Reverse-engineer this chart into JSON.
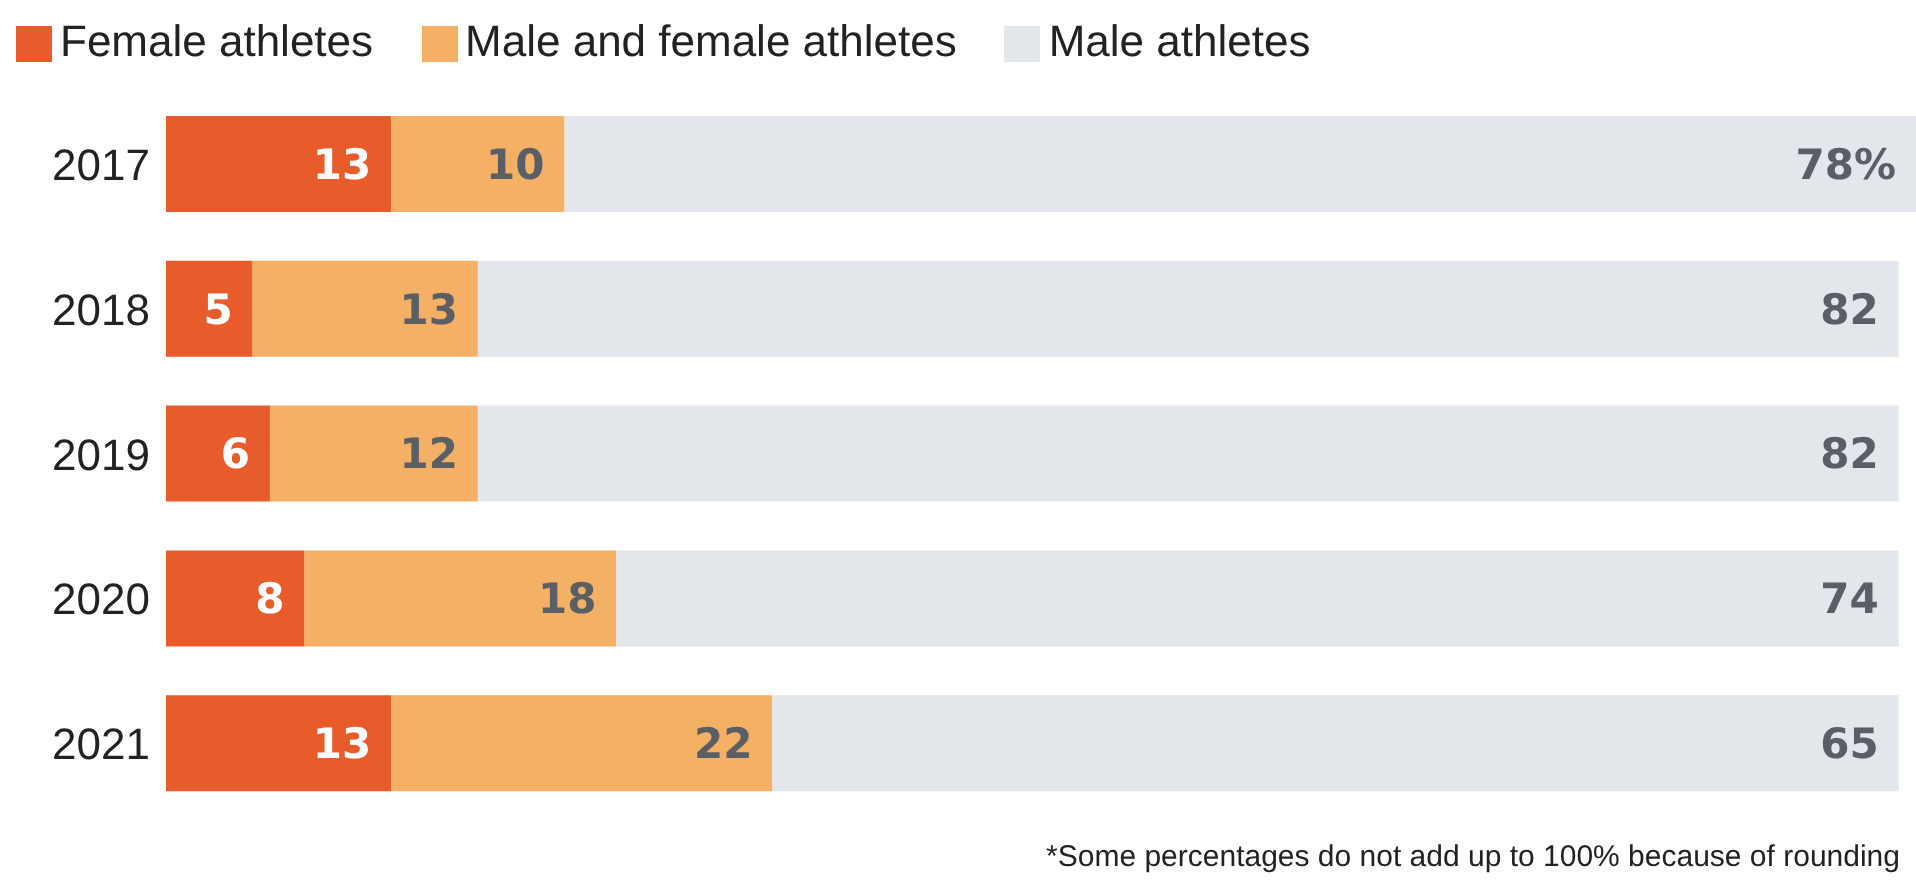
{
  "chart_data": {
    "type": "bar",
    "orientation": "horizontal",
    "stacked": true,
    "legend": "top left",
    "categories": [
      "2017",
      "2018",
      "2019",
      "2020",
      "2021"
    ],
    "series": [
      {
        "name": "Female athletes",
        "color": "#e85c2c",
        "values": [
          13,
          5,
          6,
          8,
          13
        ],
        "value_labels": [
          "13",
          "5",
          "6",
          "8",
          "13"
        ]
      },
      {
        "name": "Male and female athletes",
        "color": "#f4b064",
        "values": [
          10,
          13,
          12,
          18,
          22
        ],
        "value_labels": [
          "10",
          "13",
          "12",
          "18",
          "22"
        ]
      },
      {
        "name": "Male athletes",
        "color": "#e3e6eb",
        "values": [
          78,
          82,
          82,
          74,
          65
        ],
        "value_labels": [
          "78%",
          "82",
          "82",
          "74",
          "65"
        ]
      }
    ],
    "annotations": [
      "*Some percentages do not add up to 100% because of rounding"
    ]
  }
}
